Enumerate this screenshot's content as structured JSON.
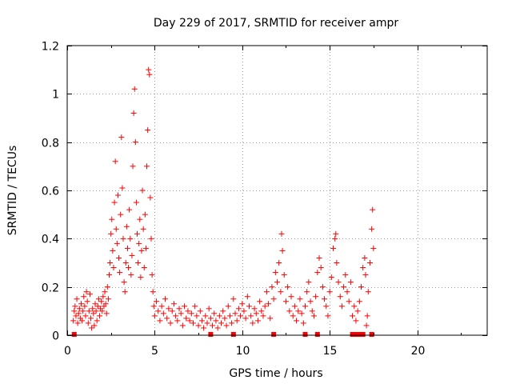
{
  "chart_data": {
    "type": "scatter",
    "title": "Day 229 of 2017, SRMTID for receiver ampr",
    "xlabel": "GPS time / hours",
    "ylabel": "SRMTID / TECUs",
    "xlim": [
      0,
      24
    ],
    "ylim": [
      0,
      1.2
    ],
    "xticks": [
      "0",
      "5",
      "10",
      "15",
      "20"
    ],
    "yticks": [
      "0",
      "0.2",
      "0.4",
      "0.6",
      "0.8",
      "1",
      "1.2"
    ],
    "xtick_values": [
      0,
      5,
      10,
      15,
      20
    ],
    "ytick_values": [
      0,
      0.2,
      0.4,
      0.6,
      0.8,
      1.0,
      1.2
    ],
    "grid": true,
    "marker": "plus",
    "color": "#ff0000",
    "series": [
      {
        "points": [
          [
            0.35,
            0.06
          ],
          [
            0.4,
            0.1
          ],
          [
            0.45,
            0.12
          ],
          [
            0.5,
            0.08
          ],
          [
            0.55,
            0.15
          ],
          [
            0.6,
            0.05
          ],
          [
            0.65,
            0.09
          ],
          [
            0.7,
            0.11
          ],
          [
            0.75,
            0.07
          ],
          [
            0.8,
            0.13
          ],
          [
            0.85,
            0.06
          ],
          [
            0.9,
            0.1
          ],
          [
            0.95,
            0.16
          ],
          [
            1.0,
            0.12
          ],
          [
            1.05,
            0.08
          ],
          [
            1.1,
            0.18
          ],
          [
            1.15,
            0.14
          ],
          [
            1.2,
            0.05
          ],
          [
            1.25,
            0.1
          ],
          [
            1.3,
            0.17
          ],
          [
            1.35,
            0.07
          ],
          [
            1.4,
            0.03
          ],
          [
            1.45,
            0.11
          ],
          [
            1.5,
            0.09
          ],
          [
            1.55,
            0.04
          ],
          [
            1.6,
            0.13
          ],
          [
            1.65,
            0.1
          ],
          [
            1.7,
            0.06
          ],
          [
            1.75,
            0.12
          ],
          [
            1.8,
            0.15
          ],
          [
            1.85,
            0.08
          ],
          [
            1.9,
            0.11
          ],
          [
            1.95,
            0.14
          ],
          [
            2.0,
            0.1
          ],
          [
            2.05,
            0.16
          ],
          [
            2.1,
            0.12
          ],
          [
            2.15,
            0.18
          ],
          [
            2.2,
            0.13
          ],
          [
            2.25,
            0.09
          ],
          [
            2.3,
            0.2
          ],
          [
            2.35,
            0.15
          ],
          [
            2.4,
            0.25
          ],
          [
            2.45,
            0.3
          ],
          [
            2.5,
            0.42
          ],
          [
            2.55,
            0.48
          ],
          [
            2.6,
            0.35
          ],
          [
            2.65,
            0.28
          ],
          [
            2.7,
            0.55
          ],
          [
            2.75,
            0.72
          ],
          [
            2.8,
            0.44
          ],
          [
            2.85,
            0.38
          ],
          [
            2.9,
            0.58
          ],
          [
            2.95,
            0.32
          ],
          [
            3.0,
            0.26
          ],
          [
            3.05,
            0.5
          ],
          [
            3.1,
            0.82
          ],
          [
            3.15,
            0.61
          ],
          [
            3.2,
            0.4
          ],
          [
            3.25,
            0.22
          ],
          [
            3.3,
            0.18
          ],
          [
            3.35,
            0.3
          ],
          [
            3.4,
            0.45
          ],
          [
            3.45,
            0.36
          ],
          [
            3.5,
            0.28
          ],
          [
            3.55,
            0.52
          ],
          [
            3.6,
            0.4
          ],
          [
            3.65,
            0.25
          ],
          [
            3.7,
            0.33
          ],
          [
            3.75,
            0.7
          ],
          [
            3.8,
            0.92
          ],
          [
            3.85,
            1.02
          ],
          [
            3.9,
            0.8
          ],
          [
            3.95,
            0.55
          ],
          [
            4.0,
            0.42
          ],
          [
            4.05,
            0.3
          ],
          [
            4.1,
            0.38
          ],
          [
            4.15,
            0.48
          ],
          [
            4.2,
            0.24
          ],
          [
            4.25,
            0.35
          ],
          [
            4.3,
            0.6
          ],
          [
            4.35,
            0.44
          ],
          [
            4.4,
            0.28
          ],
          [
            4.45,
            0.5
          ],
          [
            4.5,
            0.36
          ],
          [
            4.55,
            0.7
          ],
          [
            4.6,
            0.85
          ],
          [
            4.65,
            1.1
          ],
          [
            4.7,
            1.08
          ],
          [
            4.75,
            0.57
          ],
          [
            4.8,
            0.4
          ],
          [
            4.85,
            0.25
          ],
          [
            4.9,
            0.18
          ],
          [
            4.95,
            0.12
          ],
          [
            5.0,
            0.08
          ],
          [
            5.1,
            0.14
          ],
          [
            5.2,
            0.1
          ],
          [
            5.3,
            0.06
          ],
          [
            5.4,
            0.12
          ],
          [
            5.5,
            0.09
          ],
          [
            5.6,
            0.15
          ],
          [
            5.7,
            0.07
          ],
          [
            5.8,
            0.11
          ],
          [
            5.9,
            0.05
          ],
          [
            6.0,
            0.1
          ],
          [
            6.1,
            0.13
          ],
          [
            6.2,
            0.08
          ],
          [
            6.3,
            0.06
          ],
          [
            6.4,
            0.11
          ],
          [
            6.5,
            0.09
          ],
          [
            6.6,
            0.04
          ],
          [
            6.7,
            0.12
          ],
          [
            6.8,
            0.07
          ],
          [
            6.9,
            0.1
          ],
          [
            7.0,
            0.06
          ],
          [
            7.1,
            0.09
          ],
          [
            7.2,
            0.05
          ],
          [
            7.3,
            0.12
          ],
          [
            7.4,
            0.08
          ],
          [
            7.5,
            0.04
          ],
          [
            7.6,
            0.1
          ],
          [
            7.7,
            0.06
          ],
          [
            7.8,
            0.03
          ],
          [
            7.9,
            0.08
          ],
          [
            8.0,
            0.05
          ],
          [
            8.1,
            0.11
          ],
          [
            8.2,
            0.07
          ],
          [
            8.3,
            0.04
          ],
          [
            8.4,
            0.09
          ],
          [
            8.5,
            0.06
          ],
          [
            8.6,
            0.03
          ],
          [
            8.7,
            0.08
          ],
          [
            8.8,
            0.05
          ],
          [
            8.9,
            0.1
          ],
          [
            9.0,
            0.07
          ],
          [
            9.1,
            0.04
          ],
          [
            9.2,
            0.12
          ],
          [
            9.3,
            0.08
          ],
          [
            9.4,
            0.05
          ],
          [
            9.5,
            0.15
          ],
          [
            9.6,
            0.09
          ],
          [
            9.7,
            0.06
          ],
          [
            9.8,
            0.11
          ],
          [
            9.9,
            0.08
          ],
          [
            10.0,
            0.13
          ],
          [
            10.1,
            0.1
          ],
          [
            10.2,
            0.07
          ],
          [
            10.3,
            0.16
          ],
          [
            10.4,
            0.12
          ],
          [
            10.5,
            0.08
          ],
          [
            10.6,
            0.05
          ],
          [
            10.7,
            0.11
          ],
          [
            10.8,
            0.09
          ],
          [
            10.9,
            0.06
          ],
          [
            11.0,
            0.14
          ],
          [
            11.1,
            0.1
          ],
          [
            11.2,
            0.08
          ],
          [
            11.3,
            0.12
          ],
          [
            11.4,
            0.18
          ],
          [
            11.5,
            0.13
          ],
          [
            11.6,
            0.07
          ],
          [
            11.7,
            0.2
          ],
          [
            11.8,
            0.15
          ],
          [
            11.9,
            0.26
          ],
          [
            12.0,
            0.22
          ],
          [
            12.1,
            0.3
          ],
          [
            12.2,
            0.18
          ],
          [
            12.25,
            0.42
          ],
          [
            12.3,
            0.35
          ],
          [
            12.4,
            0.25
          ],
          [
            12.5,
            0.14
          ],
          [
            12.6,
            0.2
          ],
          [
            12.7,
            0.1
          ],
          [
            12.8,
            0.16
          ],
          [
            12.9,
            0.08
          ],
          [
            13.0,
            0.12
          ],
          [
            13.1,
            0.06
          ],
          [
            13.2,
            0.1
          ],
          [
            13.3,
            0.15
          ],
          [
            13.4,
            0.09
          ],
          [
            13.5,
            0.05
          ],
          [
            13.6,
            0.12
          ],
          [
            13.7,
            0.18
          ],
          [
            13.8,
            0.22
          ],
          [
            13.9,
            0.14
          ],
          [
            14.0,
            0.1
          ],
          [
            14.1,
            0.08
          ],
          [
            14.2,
            0.16
          ],
          [
            14.3,
            0.26
          ],
          [
            14.4,
            0.32
          ],
          [
            14.5,
            0.28
          ],
          [
            14.6,
            0.2
          ],
          [
            14.7,
            0.15
          ],
          [
            14.8,
            0.12
          ],
          [
            14.9,
            0.08
          ],
          [
            15.0,
            0.18
          ],
          [
            15.1,
            0.24
          ],
          [
            15.2,
            0.36
          ],
          [
            15.3,
            0.4
          ],
          [
            15.35,
            0.42
          ],
          [
            15.4,
            0.3
          ],
          [
            15.5,
            0.22
          ],
          [
            15.6,
            0.16
          ],
          [
            15.7,
            0.12
          ],
          [
            15.8,
            0.2
          ],
          [
            15.9,
            0.25
          ],
          [
            16.0,
            0.18
          ],
          [
            16.1,
            0.14
          ],
          [
            16.2,
            0.22
          ],
          [
            16.3,
            0.08
          ],
          [
            16.4,
            0.12
          ],
          [
            16.5,
            0.06
          ],
          [
            16.6,
            0.1
          ],
          [
            16.7,
            0.14
          ],
          [
            16.8,
            0.2
          ],
          [
            16.9,
            0.28
          ],
          [
            17.0,
            0.32
          ],
          [
            17.05,
            0.25
          ],
          [
            17.1,
            0.04
          ],
          [
            17.15,
            0.08
          ],
          [
            17.2,
            0.18
          ],
          [
            17.3,
            0.3
          ],
          [
            17.4,
            0.44
          ],
          [
            17.45,
            0.52
          ],
          [
            17.5,
            0.36
          ]
        ]
      }
    ],
    "gap_markers_x": [
      0.4,
      8.2,
      9.5,
      11.8,
      13.6,
      14.3,
      16.3,
      16.45,
      16.6,
      16.75,
      16.9,
      17.4
    ]
  }
}
